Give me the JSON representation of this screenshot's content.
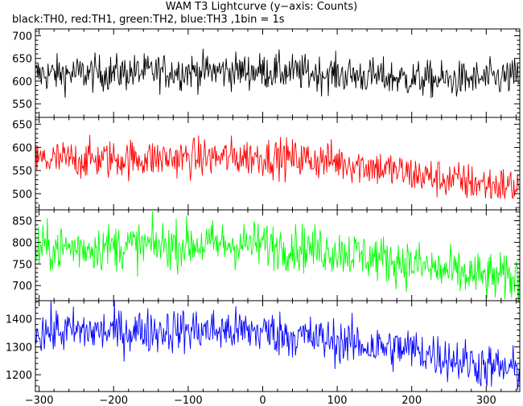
{
  "title": "WAM T3 Lightcurve (y−axis: Counts)",
  "subtitle": "black:TH0, red:TH1, green:TH2, blue:TH3 ,1bin = 1s",
  "chart_data": {
    "type": "line",
    "title": "WAM T3 Lightcurve (y−axis: Counts)",
    "subtitle": "black:TH0, red:TH1, green:TH2, blue:TH3 ,1bin = 1s",
    "bin_seconds": 1,
    "xlim": [
      -305,
      345
    ],
    "xticks": [
      -300,
      -200,
      -100,
      0,
      100,
      200,
      300
    ],
    "xtick_labels": [
      "−300",
      "−200",
      "−100",
      "0",
      "100",
      "200",
      "300"
    ],
    "grid": false,
    "legend": "subtitle text",
    "panels": [
      {
        "name": "TH0",
        "color": "#000000",
        "ylim": [
          520,
          715
        ],
        "yticks": [
          550,
          600,
          650,
          700
        ],
        "trend": {
          "x": [
            -305,
            -200,
            -100,
            0,
            100,
            200,
            250,
            300,
            345
          ],
          "y": [
            615,
            618,
            622,
            622,
            615,
            605,
            602,
            605,
            610
          ]
        },
        "noise_sigma": 20
      },
      {
        "name": "TH1",
        "color": "#ff0000",
        "ylim": [
          465,
          665
        ],
        "yticks": [
          500,
          550,
          600,
          650
        ],
        "trend": {
          "x": [
            -305,
            -200,
            -100,
            0,
            100,
            150,
            200,
            250,
            300,
            345
          ],
          "y": [
            572,
            575,
            577,
            580,
            570,
            558,
            542,
            530,
            520,
            515
          ]
        },
        "noise_sigma": 21
      },
      {
        "name": "TH2",
        "color": "#00ff00",
        "ylim": [
          665,
          875
        ],
        "yticks": [
          700,
          750,
          800,
          850
        ],
        "trend": {
          "x": [
            -305,
            -200,
            -100,
            0,
            100,
            150,
            200,
            250,
            300,
            345
          ],
          "y": [
            785,
            790,
            795,
            795,
            780,
            765,
            750,
            730,
            720,
            715
          ]
        },
        "noise_sigma": 27
      },
      {
        "name": "TH3",
        "color": "#0000ff",
        "ylim": [
          1140,
          1465
        ],
        "yticks": [
          1200,
          1300,
          1400
        ],
        "trend": {
          "x": [
            -305,
            -200,
            -100,
            0,
            100,
            150,
            200,
            250,
            300,
            345
          ],
          "y": [
            1355,
            1355,
            1360,
            1355,
            1320,
            1300,
            1290,
            1260,
            1230,
            1215
          ]
        },
        "noise_sigma": 40
      }
    ]
  }
}
